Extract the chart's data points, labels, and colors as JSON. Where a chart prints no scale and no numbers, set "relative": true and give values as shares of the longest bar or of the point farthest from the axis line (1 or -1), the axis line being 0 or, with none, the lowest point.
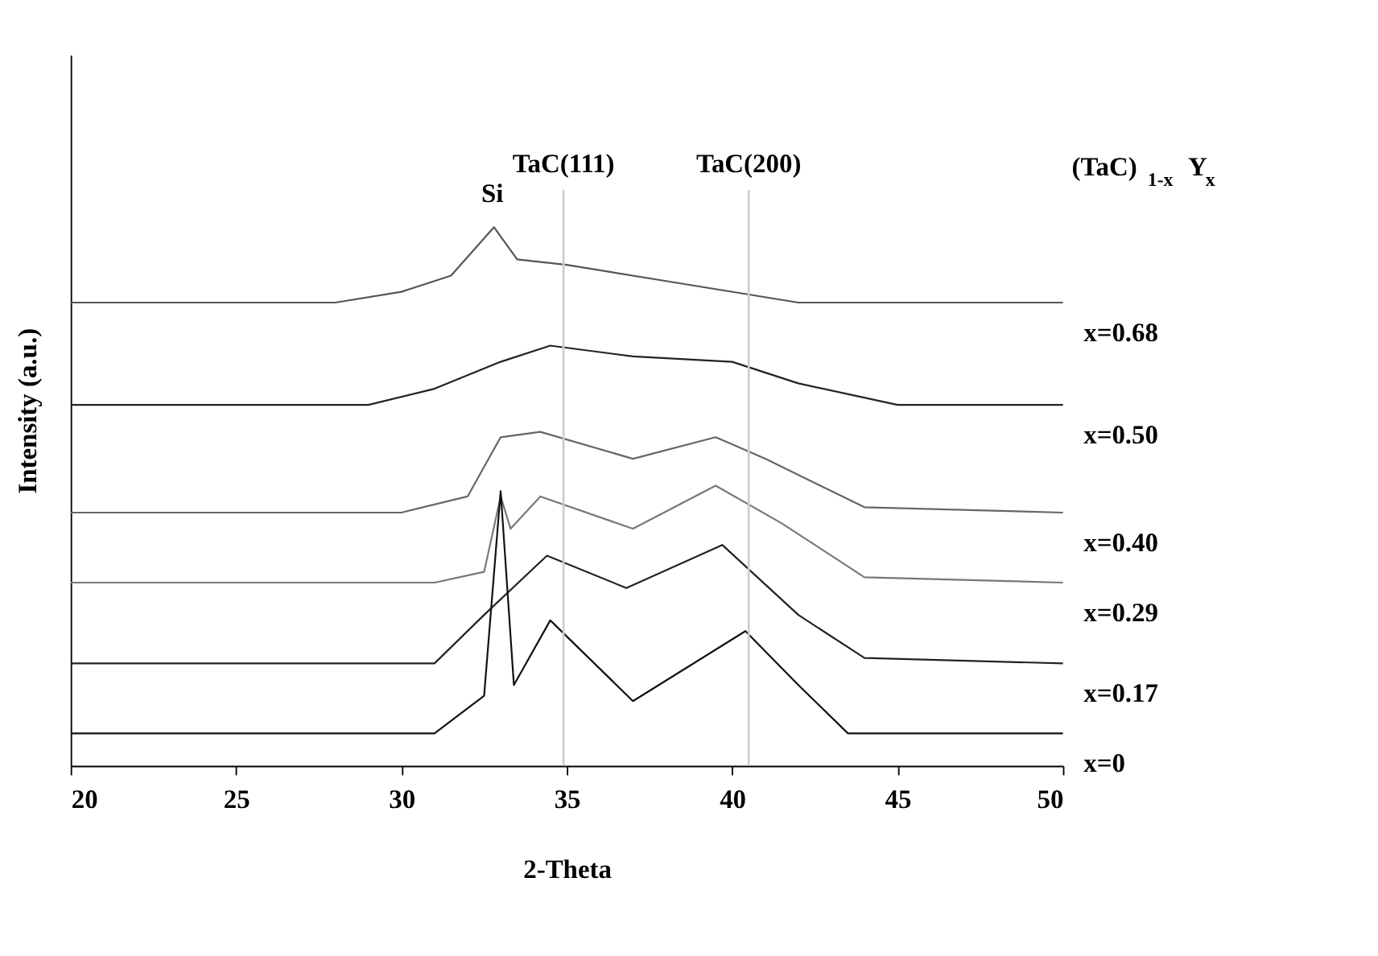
{
  "chart_data": {
    "type": "line",
    "relative": true,
    "xlabel": "2-Theta",
    "ylabel": "Intensity (a.u.)",
    "legend_title": "(TaC)$_{1-x}$Y$_{x}$",
    "xlim": [
      20,
      50
    ],
    "xticks": [
      20,
      25,
      30,
      35,
      40,
      45,
      50
    ],
    "tick_labels": "x",
    "grid": false,
    "marker": "none",
    "line_style": "solid",
    "series": [
      {
        "name": "x=0.68",
        "color": "#555555",
        "x": [
          20,
          28,
          30,
          31.5,
          32.8,
          33.5,
          35,
          38,
          42,
          50
        ],
        "values": [
          0.86,
          0.86,
          0.88,
          0.91,
          1.0,
          0.94,
          0.93,
          0.9,
          0.86,
          0.86
        ]
      },
      {
        "name": "x=0.50",
        "color": "#222222",
        "x": [
          20,
          29,
          31,
          33,
          34.5,
          37,
          40,
          42,
          45,
          50
        ],
        "values": [
          0.67,
          0.67,
          0.7,
          0.75,
          0.78,
          0.76,
          0.75,
          0.71,
          0.67,
          0.67
        ]
      },
      {
        "name": "x=0.40",
        "color": "#666666",
        "x": [
          20,
          30,
          32,
          33,
          34.2,
          37,
          39.5,
          41,
          44,
          50
        ],
        "values": [
          0.47,
          0.47,
          0.5,
          0.61,
          0.62,
          0.57,
          0.61,
          0.57,
          0.48,
          0.47
        ]
      },
      {
        "name": "x=0.29",
        "color": "#777777",
        "x": [
          20,
          31,
          32.5,
          33,
          33.3,
          34.2,
          37,
          39.5,
          41.5,
          44,
          50
        ],
        "values": [
          0.34,
          0.34,
          0.36,
          0.5,
          0.44,
          0.5,
          0.44,
          0.52,
          0.45,
          0.35,
          0.34
        ]
      },
      {
        "name": "x=0.17",
        "color": "#222222",
        "x": [
          20,
          31,
          32.5,
          34.4,
          36.8,
          39.7,
          42,
          44,
          50
        ],
        "values": [
          0.19,
          0.19,
          0.28,
          0.39,
          0.33,
          0.41,
          0.28,
          0.2,
          0.19
        ]
      },
      {
        "name": "x=0",
        "color": "#111111",
        "x": [
          20,
          31,
          32.5,
          33,
          33.4,
          34.5,
          37,
          40.4,
          42,
          43.5,
          50
        ],
        "values": [
          0.06,
          0.06,
          0.13,
          0.51,
          0.15,
          0.27,
          0.12,
          0.25,
          0.15,
          0.06,
          0.06
        ]
      }
    ],
    "ref_lines": [
      {
        "axis": "x",
        "value": 34.9,
        "label": "TaC(111)",
        "color": "#cccccc"
      },
      {
        "axis": "x",
        "value": 40.5,
        "label": "TaC(200)",
        "color": "#cccccc"
      }
    ],
    "annotations": [
      "Si"
    ]
  }
}
